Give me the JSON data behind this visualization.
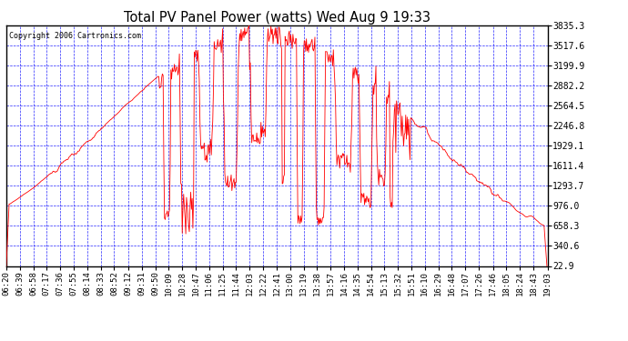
{
  "title": "Total PV Panel Power (watts) Wed Aug 9 19:33",
  "copyright": "Copyright 2006 Cartronics.com",
  "background_color": "#ffffff",
  "plot_bg_color": "#ffffff",
  "grid_color": "#0000ff",
  "line_color": "#ff0000",
  "yticks": [
    22.9,
    340.6,
    658.3,
    976.0,
    1293.7,
    1611.4,
    1929.1,
    2246.8,
    2564.5,
    2882.2,
    3199.9,
    3517.6,
    3835.3
  ],
  "ymin": 22.9,
  "ymax": 3835.3,
  "xtick_labels": [
    "06:20",
    "06:39",
    "06:58",
    "07:17",
    "07:36",
    "07:55",
    "08:14",
    "08:33",
    "08:52",
    "09:12",
    "09:31",
    "09:50",
    "10:09",
    "10:28",
    "10:47",
    "11:06",
    "11:25",
    "11:44",
    "12:03",
    "12:22",
    "12:41",
    "13:00",
    "13:19",
    "13:38",
    "13:57",
    "14:16",
    "14:35",
    "14:54",
    "15:13",
    "15:32",
    "15:51",
    "16:10",
    "16:29",
    "16:48",
    "17:07",
    "17:26",
    "17:46",
    "18:05",
    "18:24",
    "18:43",
    "19:03"
  ]
}
